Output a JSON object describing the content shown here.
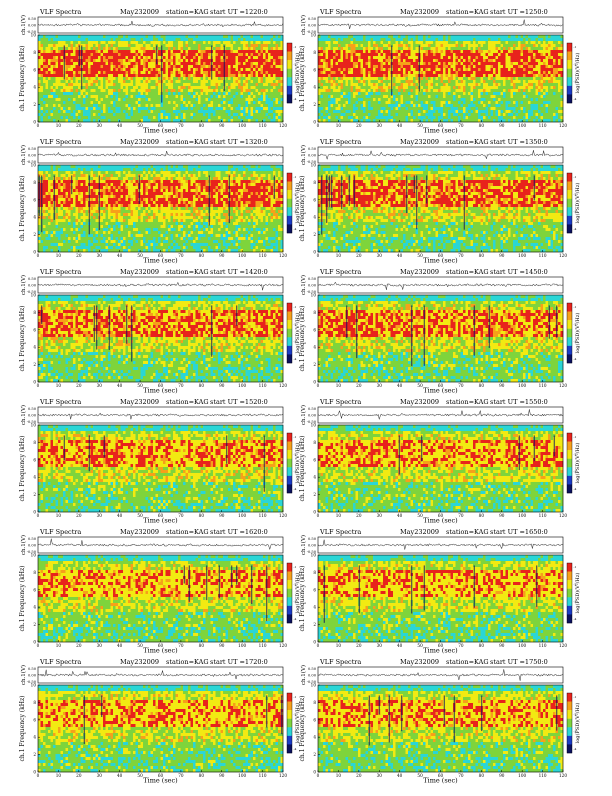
{
  "chart_data": [
    {
      "type": "heatmap",
      "header": {
        "title": "VLF Spectra",
        "date": "May232009",
        "station": "station=KAG",
        "start": "start UT =1220:0"
      },
      "ylabel_top": "ch.1(V)",
      "yticks_top": [
        "0.50",
        "0.00",
        "-0.50"
      ],
      "ylabel_main": "ch.1 Frequency (kHz)",
      "yticks_main": [
        "0",
        "2",
        "4",
        "6",
        "8",
        "10"
      ],
      "xlabel": "Time (sec)",
      "xticks": [
        "0",
        "10",
        "20",
        "30",
        "40",
        "50",
        "60",
        "70",
        "80",
        "90",
        "100",
        "110",
        "120"
      ],
      "xlim": [
        0,
        120
      ],
      "ylim": [
        0,
        10
      ],
      "colorbar_label": "log(PSD)(V²/Hz)",
      "colorbar_ticks": [
        "-1",
        "-2",
        "-3",
        "-4"
      ],
      "seed": 11,
      "intensity": 1.0
    },
    {
      "type": "heatmap",
      "header": {
        "title": "VLF Spectra",
        "date": "May232009",
        "station": "station=KAG",
        "start": "start UT =1250:0"
      },
      "ylabel_top": "ch.1(V)",
      "yticks_top": [
        "0.50",
        "0.00",
        "-0.50"
      ],
      "ylabel_main": "ch.1 Frequency (kHz)",
      "yticks_main": [
        "0",
        "2",
        "4",
        "6",
        "8",
        "10"
      ],
      "xlabel": "Time (sec)",
      "xticks": [
        "0",
        "10",
        "20",
        "30",
        "40",
        "50",
        "60",
        "70",
        "80",
        "90",
        "100",
        "110",
        "120"
      ],
      "xlim": [
        0,
        120
      ],
      "ylim": [
        0,
        10
      ],
      "colorbar_label": "log(PSD)(V²/Hz)",
      "colorbar_ticks": [
        "-1",
        "-2",
        "-3",
        "-4"
      ],
      "seed": 23,
      "intensity": 1.0
    },
    {
      "type": "heatmap",
      "header": {
        "title": "VLF Spectra",
        "date": "May232009",
        "station": "station=KAG",
        "start": "start UT =1320:0"
      },
      "ylabel_top": "ch.1(V)",
      "yticks_top": [
        "0.50",
        "0.00",
        "-0.50"
      ],
      "ylabel_main": "ch.1 Frequency (kHz)",
      "yticks_main": [
        "0",
        "2",
        "4",
        "6",
        "8",
        "10"
      ],
      "xlabel": "Time (sec)",
      "xticks": [
        "0",
        "10",
        "20",
        "30",
        "40",
        "50",
        "60",
        "70",
        "80",
        "90",
        "100",
        "110",
        "120"
      ],
      "xlim": [
        0,
        120
      ],
      "ylim": [
        0,
        10
      ],
      "colorbar_label": "log(PSD)(V²/Hz)",
      "colorbar_ticks": [
        "-1",
        "-2",
        "-3",
        "-4"
      ],
      "seed": 37,
      "intensity": 0.95
    },
    {
      "type": "heatmap",
      "header": {
        "title": "VLF Spectra",
        "date": "May232009",
        "station": "station=KAG",
        "start": "start UT =1350:0"
      },
      "ylabel_top": "ch.1(V)",
      "yticks_top": [
        "0.50",
        "0.00",
        "-0.50"
      ],
      "ylabel_main": "ch.1 Frequency (kHz)",
      "yticks_main": [
        "0",
        "2",
        "4",
        "6",
        "8",
        "10"
      ],
      "xlabel": "Time (sec)",
      "xticks": [
        "0",
        "10",
        "20",
        "30",
        "40",
        "50",
        "60",
        "70",
        "80",
        "90",
        "100",
        "110",
        "120"
      ],
      "xlim": [
        0,
        120
      ],
      "ylim": [
        0,
        10
      ],
      "colorbar_label": "log(PSD)(V²/Hz)",
      "colorbar_ticks": [
        "-1",
        "-2",
        "-3",
        "-4"
      ],
      "seed": 41,
      "intensity": 0.95
    },
    {
      "type": "heatmap",
      "header": {
        "title": "VLF Spectra",
        "date": "May232009",
        "station": "station=KAG",
        "start": "start UT =1420:0"
      },
      "ylabel_top": "ch.1(V)",
      "yticks_top": [
        "0.50",
        "0.00",
        "-0.50"
      ],
      "ylabel_main": "ch.1 Frequency (kHz)",
      "yticks_main": [
        "0",
        "2",
        "4",
        "6",
        "8",
        "10"
      ],
      "xlabel": "Time (sec)",
      "xticks": [
        "0",
        "10",
        "20",
        "30",
        "40",
        "50",
        "60",
        "70",
        "80",
        "90",
        "100",
        "110",
        "120"
      ],
      "xlim": [
        0,
        120
      ],
      "ylim": [
        0,
        10
      ],
      "colorbar_label": "log(PSD)(V²/Hz)",
      "colorbar_ticks": [
        "-1",
        "-2",
        "-3",
        "-4"
      ],
      "seed": 53,
      "intensity": 0.8
    },
    {
      "type": "heatmap",
      "header": {
        "title": "VLF Spectra",
        "date": "May232009",
        "station": "station=KAG",
        "start": "start UT =1450:0"
      },
      "ylabel_top": "ch.1(V)",
      "yticks_top": [
        "0.50",
        "0.00",
        "-0.50"
      ],
      "ylabel_main": "ch.1 Frequency (kHz)",
      "yticks_main": [
        "0",
        "2",
        "4",
        "6",
        "8",
        "10"
      ],
      "xlabel": "Time (sec)",
      "xticks": [
        "0",
        "10",
        "20",
        "30",
        "40",
        "50",
        "60",
        "70",
        "80",
        "90",
        "100",
        "110",
        "120"
      ],
      "xlim": [
        0,
        120
      ],
      "ylim": [
        0,
        10
      ],
      "colorbar_label": "log(PSD)(V²/Hz)",
      "colorbar_ticks": [
        "-1",
        "-2",
        "-3",
        "-4"
      ],
      "seed": 67,
      "intensity": 0.8
    },
    {
      "type": "heatmap",
      "header": {
        "title": "VLF Spectra",
        "date": "May232009",
        "station": "station=KAG",
        "start": "start UT =1520:0"
      },
      "ylabel_top": "ch.1(V)",
      "yticks_top": [
        "0.50",
        "0.00",
        "-0.50"
      ],
      "ylabel_main": "ch.1 Frequency (kHz)",
      "yticks_main": [
        "0",
        "2",
        "4",
        "6",
        "8",
        "10"
      ],
      "xlabel": "Time (sec)",
      "xticks": [
        "0",
        "10",
        "20",
        "30",
        "40",
        "50",
        "60",
        "70",
        "80",
        "90",
        "100",
        "110",
        "120"
      ],
      "xlim": [
        0,
        120
      ],
      "ylim": [
        0,
        10
      ],
      "colorbar_label": "log(PSD)(V²/Hz)",
      "colorbar_ticks": [
        "-1",
        "-2",
        "-3",
        "-4"
      ],
      "seed": 71,
      "intensity": 0.72
    },
    {
      "type": "heatmap",
      "header": {
        "title": "VLF Spectra",
        "date": "May232009",
        "station": "station=KAG",
        "start": "start UT =1550:0"
      },
      "ylabel_top": "ch.1(V)",
      "yticks_top": [
        "0.50",
        "0.00",
        "-0.50"
      ],
      "ylabel_main": "ch.1 Frequency (kHz)",
      "yticks_main": [
        "0",
        "2",
        "4",
        "6",
        "8",
        "10"
      ],
      "xlabel": "Time (sec)",
      "xticks": [
        "0",
        "10",
        "20",
        "30",
        "40",
        "50",
        "60",
        "70",
        "80",
        "90",
        "100",
        "110",
        "120"
      ],
      "xlim": [
        0,
        120
      ],
      "ylim": [
        0,
        10
      ],
      "colorbar_label": "log(PSD)(V²/Hz)",
      "colorbar_ticks": [
        "-1",
        "-2",
        "-3",
        "-4"
      ],
      "seed": 83,
      "intensity": 0.65
    },
    {
      "type": "heatmap",
      "header": {
        "title": "VLF Spectra",
        "date": "May232009",
        "station": "station=KAG",
        "start": "start UT =1620:0"
      },
      "ylabel_top": "ch.1(V)",
      "yticks_top": [
        "0.50",
        "0.00",
        "-0.50"
      ],
      "ylabel_main": "ch.1 Frequency (kHz)",
      "yticks_main": [
        "0",
        "2",
        "4",
        "6",
        "8",
        "10"
      ],
      "xlabel": "Time (sec)",
      "xticks": [
        "0",
        "10",
        "20",
        "30",
        "40",
        "50",
        "60",
        "70",
        "80",
        "90",
        "100",
        "110",
        "120"
      ],
      "xlim": [
        0,
        120
      ],
      "ylim": [
        0,
        10
      ],
      "colorbar_label": "log(PSD)(V²/Hz)",
      "colorbar_ticks": [
        "-1",
        "-2",
        "-3",
        "-4"
      ],
      "seed": 97,
      "intensity": 0.58
    },
    {
      "type": "heatmap",
      "header": {
        "title": "VLF Spectra",
        "date": "May232009",
        "station": "station=KAG",
        "start": "start UT =1650:0"
      },
      "ylabel_top": "ch.1(V)",
      "yticks_top": [
        "0.50",
        "0.00",
        "-0.50"
      ],
      "ylabel_main": "ch.1 Frequency (kHz)",
      "yticks_main": [
        "0",
        "2",
        "4",
        "6",
        "8",
        "10"
      ],
      "xlabel": "Time (sec)",
      "xticks": [
        "0",
        "10",
        "20",
        "30",
        "40",
        "50",
        "60",
        "70",
        "80",
        "90",
        "100",
        "110",
        "120"
      ],
      "xlim": [
        0,
        120
      ],
      "ylim": [
        0,
        10
      ],
      "colorbar_label": "log(PSD)(V²/Hz)",
      "colorbar_ticks": [
        "-1",
        "-2",
        "-3",
        "-4"
      ],
      "seed": 101,
      "intensity": 0.55
    },
    {
      "type": "heatmap",
      "header": {
        "title": "VLF Spectra",
        "date": "May232009",
        "station": "station=KAG",
        "start": "start UT =1720:0"
      },
      "ylabel_top": "ch.1(V)",
      "yticks_top": [
        "0.50",
        "0.00",
        "-0.50"
      ],
      "ylabel_main": "ch.1 Frequency (kHz)",
      "yticks_main": [
        "0",
        "2",
        "4",
        "6",
        "8",
        "10"
      ],
      "xlabel": "Time (sec)",
      "xticks": [
        "0",
        "10",
        "20",
        "30",
        "40",
        "50",
        "60",
        "70",
        "80",
        "90",
        "100",
        "110",
        "120"
      ],
      "xlim": [
        0,
        120
      ],
      "ylim": [
        0,
        10
      ],
      "colorbar_label": "log(PSD)(V²/Hz)",
      "colorbar_ticks": [
        "-1",
        "-2",
        "-3",
        "-4"
      ],
      "seed": 113,
      "intensity": 0.62
    },
    {
      "type": "heatmap",
      "header": {
        "title": "VLF Spectra",
        "date": "May232009",
        "station": "station=KAG",
        "start": "start UT =1750:0"
      },
      "ylabel_top": "ch.1(V)",
      "yticks_top": [
        "0.50",
        "0.00",
        "-0.50"
      ],
      "ylabel_main": "ch.1 Frequency (kHz)",
      "yticks_main": [
        "0",
        "2",
        "4",
        "6",
        "8",
        "10"
      ],
      "xlabel": "Time (sec)",
      "xticks": [
        "0",
        "10",
        "20",
        "30",
        "40",
        "50",
        "60",
        "70",
        "80",
        "90",
        "100",
        "110",
        "120"
      ],
      "xlim": [
        0,
        120
      ],
      "ylim": [
        0,
        10
      ],
      "colorbar_label": "log(PSD)(V²/Hz)",
      "colorbar_ticks": [
        "-1",
        "-2",
        "-3",
        "-4"
      ],
      "seed": 127,
      "intensity": 0.6
    }
  ],
  "colors": {
    "red": "#e8231c",
    "orange": "#f6a01a",
    "yellow": "#f2ea12",
    "green": "#7ed43c",
    "cyan": "#2ad6d6",
    "blue": "#1b3cc8",
    "navy": "#0a1060",
    "trace": "#222222"
  }
}
